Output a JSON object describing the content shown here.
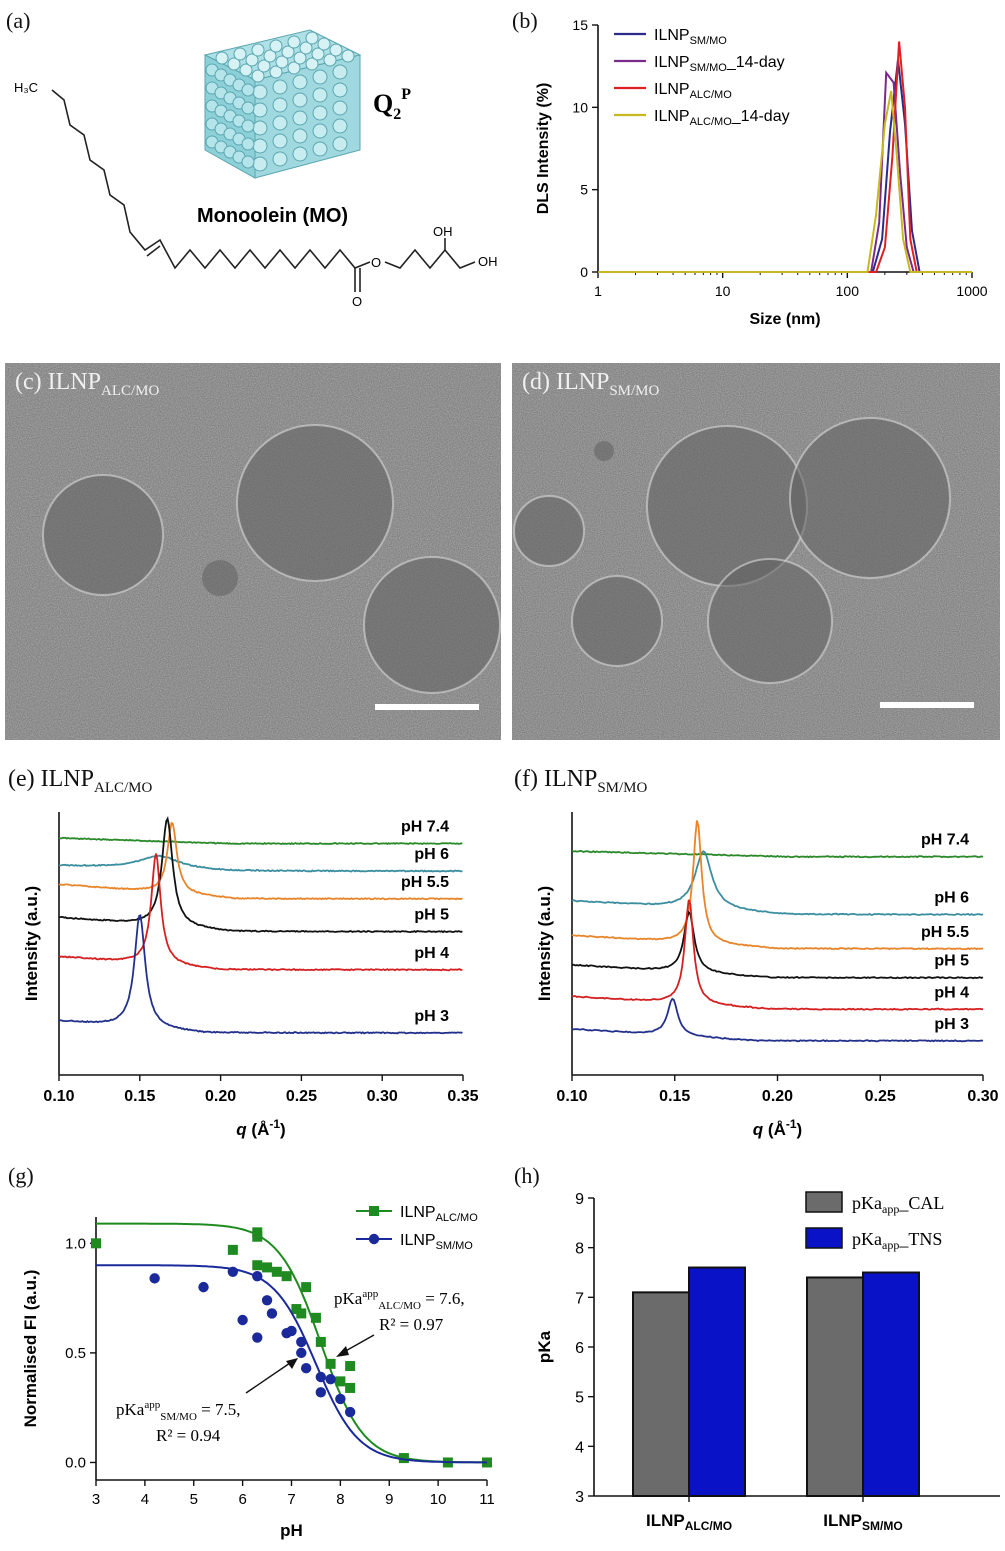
{
  "panels": {
    "a": {
      "label": "(a)",
      "molecule_name": "Monoolein (MO)",
      "phase_main": "Q",
      "phase_sub": "2",
      "phase_sup": "P",
      "atoms": {
        "h3c": "H₃C",
        "oh1": "OH",
        "oh2": "OH",
        "o_ester": "O",
        "o_carbonyl": "O"
      }
    },
    "b": {
      "label": "(b)"
    },
    "c": {
      "label": "(c)",
      "title_main": "ILNP",
      "title_sub": "ALC/MO"
    },
    "d": {
      "label": "(d)",
      "title_main": "ILNP",
      "title_sub": "SM/MO"
    },
    "e": {
      "label": "(e)",
      "title_main": "ILNP",
      "title_sub": "ALC/MO"
    },
    "f": {
      "label": "(f)",
      "title_main": "ILNP",
      "title_sub": "SM/MO"
    },
    "g": {
      "label": "(g)",
      "ann1_main": "pKa",
      "ann1_sup": "app",
      "ann1_sub": "ALC/MO",
      "ann1_val": " = 7.6,",
      "ann1_r2": "R² = 0.97",
      "ann2_main": "pKa",
      "ann2_sup": "app",
      "ann2_sub": "SM/MO",
      "ann2_val": " = 7.5,",
      "ann2_r2": "R² = 0.94"
    },
    "h": {
      "label": "(h)"
    }
  },
  "chart_data": [
    {
      "id": "b",
      "type": "line",
      "xlabel": "Size (nm)",
      "ylabel": "DLS Intensity (%)",
      "xscale": "log",
      "xlim": [
        1,
        1000
      ],
      "ylim": [
        0,
        15
      ],
      "xticks": [
        "1",
        "10",
        "100",
        "1000"
      ],
      "yticks": [
        "0",
        "5",
        "10",
        "15"
      ],
      "legend_position": "top-left",
      "series": [
        {
          "name": "ILNP",
          "sub": "SM/MO",
          "suffix": "",
          "color": "#2b2b8c",
          "x": [
            1,
            160,
            190,
            220,
            255,
            290,
            330,
            380,
            1000
          ],
          "y": [
            0,
            0,
            2.0,
            8.5,
            12.9,
            9.0,
            2.5,
            0,
            0
          ]
        },
        {
          "name": "ILNP",
          "sub": "SM/MO",
          "suffix": "_14-day",
          "color": "#7a2a8c",
          "x": [
            1,
            155,
            180,
            205,
            235,
            265,
            300,
            340,
            1000
          ],
          "y": [
            0,
            0,
            3.0,
            12.1,
            11.5,
            6.0,
            1.5,
            0,
            0
          ]
        },
        {
          "name": "ILNP",
          "sub": "ALC/MO",
          "suffix": "",
          "color": "#e02020",
          "x": [
            1,
            170,
            200,
            230,
            260,
            290,
            320,
            360,
            1000
          ],
          "y": [
            0,
            0,
            1.5,
            7.0,
            14.0,
            10.0,
            2.0,
            0,
            0
          ]
        },
        {
          "name": "ILNP",
          "sub": "ALC/MO",
          "suffix": "_14-day",
          "color": "#c8b820",
          "x": [
            1,
            145,
            170,
            200,
            225,
            250,
            280,
            320,
            1000
          ],
          "y": [
            0,
            0,
            3.5,
            9.0,
            11.0,
            7.0,
            2.0,
            0,
            0
          ]
        }
      ]
    },
    {
      "id": "e",
      "type": "line",
      "xlabel": "q (Å⁻¹)",
      "xlabel_q": "q",
      "xlabel_rest": " (Å",
      "xlabel_sup": "-1",
      "xlabel_end": ")",
      "ylabel": "Intensity (a.u.)",
      "xlim": [
        0.1,
        0.35
      ],
      "xticks": [
        "0.10",
        "0.15",
        "0.20",
        "0.25",
        "0.30",
        "0.35"
      ],
      "series": [
        {
          "name": "pH 7.4",
          "color": "#2a8a2a",
          "baseline": 0.12,
          "peak_q": 0.165,
          "peak_h": 0.0,
          "width": 0.004
        },
        {
          "name": "pH 6",
          "color": "#3a8ea0",
          "baseline": 0.225,
          "peak_q": 0.162,
          "peak_h": 0.05,
          "width": 0.015
        },
        {
          "name": "pH 5.5",
          "color": "#e8852a",
          "baseline": 0.33,
          "peak_q": 0.17,
          "peak_h": 0.27,
          "width": 0.0035
        },
        {
          "name": "pH 5",
          "color": "#111111",
          "baseline": 0.455,
          "peak_q": 0.167,
          "peak_h": 0.41,
          "width": 0.004
        },
        {
          "name": "pH 4",
          "color": "#d42020",
          "baseline": 0.6,
          "peak_q": 0.16,
          "peak_h": 0.42,
          "width": 0.0035
        },
        {
          "name": "pH 3",
          "color": "#22308c",
          "baseline": 0.84,
          "peak_q": 0.15,
          "peak_h": 0.43,
          "width": 0.004
        }
      ]
    },
    {
      "id": "f",
      "type": "line",
      "xlabel": "q (Å⁻¹)",
      "xlabel_q": "q",
      "xlabel_rest": " (Å",
      "xlabel_sup": "-1",
      "xlabel_end": ")",
      "ylabel": "Intensity (a.u.)",
      "xlim": [
        0.1,
        0.3
      ],
      "xticks": [
        "0.10",
        "0.15",
        "0.20",
        "0.25",
        "0.30"
      ],
      "series": [
        {
          "name": "pH 7.4",
          "color": "#2a8a2a",
          "baseline": 0.17,
          "peak_q": 0.165,
          "peak_h": 0.0,
          "width": 0.004
        },
        {
          "name": "pH 6",
          "color": "#3a8ea0",
          "baseline": 0.39,
          "peak_q": 0.164,
          "peak_h": 0.22,
          "width": 0.005
        },
        {
          "name": "pH 5.5",
          "color": "#e8852a",
          "baseline": 0.52,
          "peak_q": 0.161,
          "peak_h": 0.47,
          "width": 0.0025
        },
        {
          "name": "pH 5",
          "color": "#111111",
          "baseline": 0.63,
          "peak_q": 0.157,
          "peak_h": 0.23,
          "width": 0.003
        },
        {
          "name": "pH 4",
          "color": "#d42020",
          "baseline": 0.75,
          "peak_q": 0.157,
          "peak_h": 0.4,
          "width": 0.0025
        },
        {
          "name": "pH 3",
          "color": "#22308c",
          "baseline": 0.87,
          "peak_q": 0.149,
          "peak_h": 0.14,
          "width": 0.003
        }
      ]
    },
    {
      "id": "g",
      "type": "scatter",
      "xlabel": "pH",
      "ylabel": "Normalised FI (a.u.)",
      "xlim": [
        3,
        11
      ],
      "ylim": [
        -0.08,
        1.12
      ],
      "xticks": [
        "3",
        "4",
        "5",
        "6",
        "7",
        "8",
        "9",
        "10",
        "11"
      ],
      "yticks": [
        "0.0",
        "0.5",
        "1.0"
      ],
      "legend_position": "top-right",
      "series": [
        {
          "name": "ILNP",
          "sub": "ALC/MO",
          "color": "#1f8a1f",
          "marker": "square",
          "fit": {
            "top": 1.09,
            "pka": 7.6,
            "slope": 1.0
          },
          "x": [
            3.0,
            5.8,
            6.3,
            6.3,
            6.3,
            6.5,
            6.7,
            6.9,
            7.1,
            7.2,
            7.3,
            7.5,
            7.6,
            7.8,
            8.0,
            8.2,
            8.2,
            9.3,
            10.2,
            11.0
          ],
          "y": [
            1.0,
            0.97,
            1.05,
            1.03,
            0.9,
            0.89,
            0.87,
            0.85,
            0.7,
            0.68,
            0.8,
            0.66,
            0.55,
            0.45,
            0.37,
            0.34,
            0.44,
            0.02,
            0.0,
            0.0
          ]
        },
        {
          "name": "ILNP",
          "sub": "SM/MO",
          "color": "#1a2a9a",
          "marker": "circle",
          "fit": {
            "top": 0.9,
            "pka": 7.5,
            "slope": 1.0
          },
          "x": [
            4.2,
            5.2,
            5.8,
            6.0,
            6.3,
            6.3,
            6.5,
            6.6,
            6.9,
            7.0,
            7.2,
            7.2,
            7.3,
            7.6,
            7.6,
            7.8,
            8.0,
            8.2
          ],
          "y": [
            0.84,
            0.8,
            0.87,
            0.65,
            0.85,
            0.57,
            0.74,
            0.68,
            0.59,
            0.6,
            0.5,
            0.55,
            0.43,
            0.39,
            0.32,
            0.38,
            0.29,
            0.23
          ]
        }
      ]
    },
    {
      "id": "h",
      "type": "bar",
      "ylabel": "pKa",
      "ylim": [
        3,
        9
      ],
      "yticks": [
        "3",
        "4",
        "5",
        "6",
        "7",
        "8",
        "9"
      ],
      "categories": [
        {
          "main": "ILNP",
          "sub": "ALC/MO"
        },
        {
          "main": "ILNP",
          "sub": "SM/MO"
        }
      ],
      "legend_position": "top-right",
      "series": [
        {
          "name": "pKa",
          "sub": "app",
          "suffix": "_CAL",
          "color": "#6b6b6b",
          "values": [
            7.1,
            7.4
          ]
        },
        {
          "name": "pKa",
          "sub": "app",
          "suffix": "_TNS",
          "color": "#0a12c8",
          "values": [
            7.6,
            7.5
          ]
        }
      ]
    }
  ],
  "images": {
    "c": {
      "scale_bar": true
    },
    "d": {
      "scale_bar": true
    }
  }
}
